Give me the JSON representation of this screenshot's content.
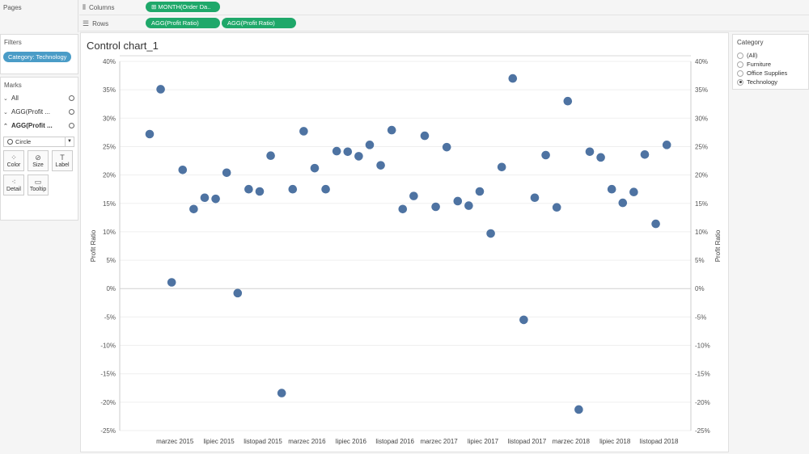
{
  "pages": {
    "title": "Pages"
  },
  "shelves": {
    "columns": {
      "label": "Columns",
      "pills": [
        "MONTH(Order Da.."
      ]
    },
    "rows": {
      "label": "Rows",
      "pills": [
        "AGG(Profit Ratio)",
        "AGG(Profit Ratio)"
      ]
    }
  },
  "filters": {
    "title": "Filters",
    "pill": "Category: Technology"
  },
  "marks": {
    "title": "Marks",
    "rows": [
      "All",
      "AGG(Profit ...",
      "AGG(Profit ..."
    ],
    "mark_type": "Circle",
    "buttons": [
      "Color",
      "Size",
      "Label",
      "Detail",
      "Tooltip"
    ]
  },
  "legend": {
    "title": "Category",
    "options": [
      {
        "label": "(All)",
        "selected": false
      },
      {
        "label": "Furniture",
        "selected": false
      },
      {
        "label": "Office Supplies",
        "selected": false
      },
      {
        "label": "Technology",
        "selected": true
      }
    ]
  },
  "chart_data": {
    "type": "scatter",
    "title": "Control chart_1",
    "ylabel": "Profit Ratio",
    "ylabel_right": "Profit Ratio",
    "ylim": [
      -25,
      40
    ],
    "yticks": [
      -25,
      -20,
      -15,
      -10,
      -5,
      0,
      5,
      10,
      15,
      20,
      25,
      30,
      35,
      40
    ],
    "ytick_labels": [
      "-25%",
      "-20%",
      "-15%",
      "-10%",
      "-5%",
      "0%",
      "5%",
      "10%",
      "15%",
      "20%",
      "25%",
      "30%",
      "35%",
      "40%"
    ],
    "x_months": [
      "2015-01",
      "2015-02",
      "2015-03",
      "2015-04",
      "2015-05",
      "2015-06",
      "2015-07",
      "2015-08",
      "2015-09",
      "2015-10",
      "2015-11",
      "2015-12",
      "2016-01",
      "2016-02",
      "2016-03",
      "2016-04",
      "2016-05",
      "2016-06",
      "2016-07",
      "2016-08",
      "2016-09",
      "2016-10",
      "2016-11",
      "2016-12",
      "2017-01",
      "2017-02",
      "2017-03",
      "2017-04",
      "2017-05",
      "2017-06",
      "2017-07",
      "2017-08",
      "2017-09",
      "2017-10",
      "2017-11",
      "2017-12",
      "2018-01",
      "2018-02",
      "2018-03",
      "2018-04",
      "2018-05",
      "2018-06",
      "2018-07",
      "2018-08",
      "2018-09",
      "2018-10",
      "2018-11",
      "2018-12"
    ],
    "xticks": [
      {
        "month": "2015-03",
        "label": "marzec 2015"
      },
      {
        "month": "2015-07",
        "label": "lipiec 2015"
      },
      {
        "month": "2015-11",
        "label": "listopad 2015"
      },
      {
        "month": "2016-03",
        "label": "marzec 2016"
      },
      {
        "month": "2016-07",
        "label": "lipiec 2016"
      },
      {
        "month": "2016-11",
        "label": "listopad 2016"
      },
      {
        "month": "2017-03",
        "label": "marzec 2017"
      },
      {
        "month": "2017-07",
        "label": "lipiec 2017"
      },
      {
        "month": "2017-11",
        "label": "listopad 2017"
      },
      {
        "month": "2018-03",
        "label": "marzec 2018"
      },
      {
        "month": "2018-07",
        "label": "lipiec 2018"
      },
      {
        "month": "2018-11",
        "label": "listopad 2018"
      }
    ],
    "values": [
      27.2,
      35.1,
      1.1,
      20.9,
      14.0,
      16.0,
      15.8,
      20.4,
      -0.8,
      17.5,
      17.1,
      23.4,
      -18.4,
      17.5,
      27.7,
      21.2,
      17.5,
      24.2,
      24.1,
      23.3,
      25.3,
      21.7,
      27.9,
      14.0,
      16.3,
      26.9,
      14.4,
      24.9,
      15.4,
      14.6,
      17.1,
      9.7,
      21.4,
      37.0,
      -5.5,
      16.0,
      23.5,
      14.3,
      33.0,
      -21.3,
      24.1,
      23.1,
      17.5,
      15.1,
      17.0,
      23.6,
      11.4,
      25.3
    ],
    "marker_color": "#4e73a2",
    "grid": true
  }
}
